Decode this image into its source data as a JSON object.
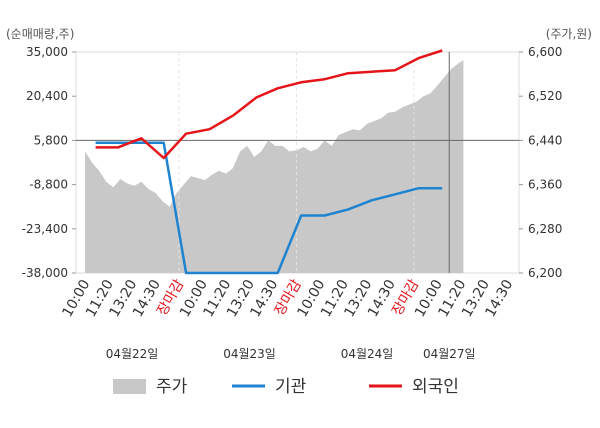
{
  "chart_data": {
    "type": "line",
    "left_axis": {
      "unit_label": "(순매매량,주)",
      "ticks": [
        35000,
        20400,
        5800,
        -8800,
        -23400,
        -38000
      ],
      "tick_labels": [
        "35,000",
        "20,400",
        "5,800",
        "-8,800",
        "-23,400",
        "-38,000"
      ],
      "range": [
        -38000,
        35000
      ]
    },
    "right_axis": {
      "unit_label": "(주가,원)",
      "ticks": [
        6600,
        6520,
        6440,
        6360,
        6280,
        6200
      ],
      "tick_labels": [
        "6,600",
        "6,520",
        "6,440",
        "6,360",
        "6,280",
        "6,200"
      ],
      "range": [
        6200,
        6600
      ]
    },
    "x_ticks": [
      {
        "label": "10:00",
        "highlight": false
      },
      {
        "label": "11:20",
        "highlight": false
      },
      {
        "label": "13:20",
        "highlight": false
      },
      {
        "label": "14:30",
        "highlight": false
      },
      {
        "label": "장마감",
        "highlight": true
      },
      {
        "label": "10:00",
        "highlight": false
      },
      {
        "label": "11:20",
        "highlight": false
      },
      {
        "label": "13:20",
        "highlight": false
      },
      {
        "label": "14:30",
        "highlight": false
      },
      {
        "label": "장마감",
        "highlight": true
      },
      {
        "label": "10:00",
        "highlight": false
      },
      {
        "label": "11:20",
        "highlight": false
      },
      {
        "label": "13:20",
        "highlight": false
      },
      {
        "label": "14:30",
        "highlight": false
      },
      {
        "label": "장마감",
        "highlight": true
      },
      {
        "label": "10:00",
        "highlight": false
      },
      {
        "label": "11:20",
        "highlight": false
      },
      {
        "label": "13:20",
        "highlight": false
      },
      {
        "label": "14:30",
        "highlight": false
      }
    ],
    "days": [
      {
        "label": "04월22일",
        "tick_index": 2
      },
      {
        "label": "04월23일",
        "tick_index": 7
      },
      {
        "label": "04월24일",
        "tick_index": 12
      },
      {
        "label": "04월27일",
        "tick_index": 15.5
      }
    ],
    "price_series": {
      "name": "주가",
      "color": "#c8c8c8",
      "points": [
        [
          0,
          6420
        ],
        [
          0.3,
          6400
        ],
        [
          0.6,
          6385
        ],
        [
          0.9,
          6365
        ],
        [
          1.2,
          6355
        ],
        [
          1.5,
          6370
        ],
        [
          1.8,
          6362
        ],
        [
          2.1,
          6358
        ],
        [
          2.4,
          6365
        ],
        [
          2.7,
          6352
        ],
        [
          3.0,
          6345
        ],
        [
          3.3,
          6330
        ],
        [
          3.6,
          6320
        ],
        [
          3.9,
          6345
        ],
        [
          4.2,
          6360
        ],
        [
          4.5,
          6375
        ],
        [
          4.8,
          6372
        ],
        [
          5.1,
          6368
        ],
        [
          5.4,
          6378
        ],
        [
          5.7,
          6385
        ],
        [
          6.0,
          6380
        ],
        [
          6.3,
          6390
        ],
        [
          6.6,
          6420
        ],
        [
          6.9,
          6430
        ],
        [
          7.2,
          6410
        ],
        [
          7.5,
          6420
        ],
        [
          7.8,
          6440
        ],
        [
          8.1,
          6430
        ],
        [
          8.4,
          6430
        ],
        [
          8.7,
          6420
        ],
        [
          9.0,
          6422
        ],
        [
          9.3,
          6428
        ],
        [
          9.6,
          6420
        ],
        [
          9.9,
          6425
        ],
        [
          10.2,
          6440
        ],
        [
          10.5,
          6430
        ],
        [
          10.8,
          6450
        ],
        [
          11.1,
          6455
        ],
        [
          11.4,
          6460
        ],
        [
          11.7,
          6458
        ],
        [
          12.0,
          6470
        ],
        [
          12.3,
          6475
        ],
        [
          12.6,
          6480
        ],
        [
          12.9,
          6490
        ],
        [
          13.2,
          6492
        ],
        [
          13.5,
          6500
        ],
        [
          13.8,
          6505
        ],
        [
          14.1,
          6510
        ],
        [
          14.4,
          6520
        ],
        [
          14.7,
          6525
        ],
        [
          15.0,
          6540
        ],
        [
          15.3,
          6555
        ],
        [
          15.6,
          6570
        ],
        [
          15.9,
          6580
        ],
        [
          16.1,
          6585
        ]
      ]
    },
    "series": [
      {
        "name": "기관",
        "color": "#1f83d0",
        "points": [
          [
            0.45,
            5000
          ],
          [
            1.4,
            5000
          ],
          [
            2.4,
            5000
          ],
          [
            3.35,
            5000
          ],
          [
            4.3,
            -38000
          ],
          [
            5.3,
            -38000
          ],
          [
            6.3,
            -38000
          ],
          [
            7.3,
            -38000
          ],
          [
            8.2,
            -38000
          ],
          [
            9.2,
            -19000
          ],
          [
            10.2,
            -19000
          ],
          [
            11.2,
            -17000
          ],
          [
            12.2,
            -14000
          ],
          [
            13.2,
            -12000
          ],
          [
            14.2,
            -10000
          ],
          [
            15.2,
            -10000
          ]
        ]
      },
      {
        "name": "외국인",
        "color": "#e5141a",
        "points": [
          [
            0.45,
            3500
          ],
          [
            1.4,
            3500
          ],
          [
            2.4,
            6500
          ],
          [
            3.35,
            0
          ],
          [
            4.3,
            8000
          ],
          [
            5.3,
            9500
          ],
          [
            6.3,
            14000
          ],
          [
            7.3,
            20000
          ],
          [
            8.2,
            23000
          ],
          [
            9.2,
            25000
          ],
          [
            10.2,
            26000
          ],
          [
            11.2,
            28000
          ],
          [
            12.2,
            28500
          ],
          [
            13.2,
            29000
          ],
          [
            14.2,
            33000
          ],
          [
            15.2,
            35500
          ]
        ]
      }
    ],
    "current_time_marker": {
      "x_tick": 15.5,
      "y": 5800
    },
    "legend": [
      {
        "label": "주가",
        "kind": "area",
        "color": "#c8c8c8"
      },
      {
        "label": "기관",
        "kind": "line",
        "color": "#1f83d0"
      },
      {
        "label": "외국인",
        "kind": "line",
        "color": "#e5141a"
      }
    ],
    "legend_position": "bottom",
    "grid": "vertical dashed at market close"
  }
}
